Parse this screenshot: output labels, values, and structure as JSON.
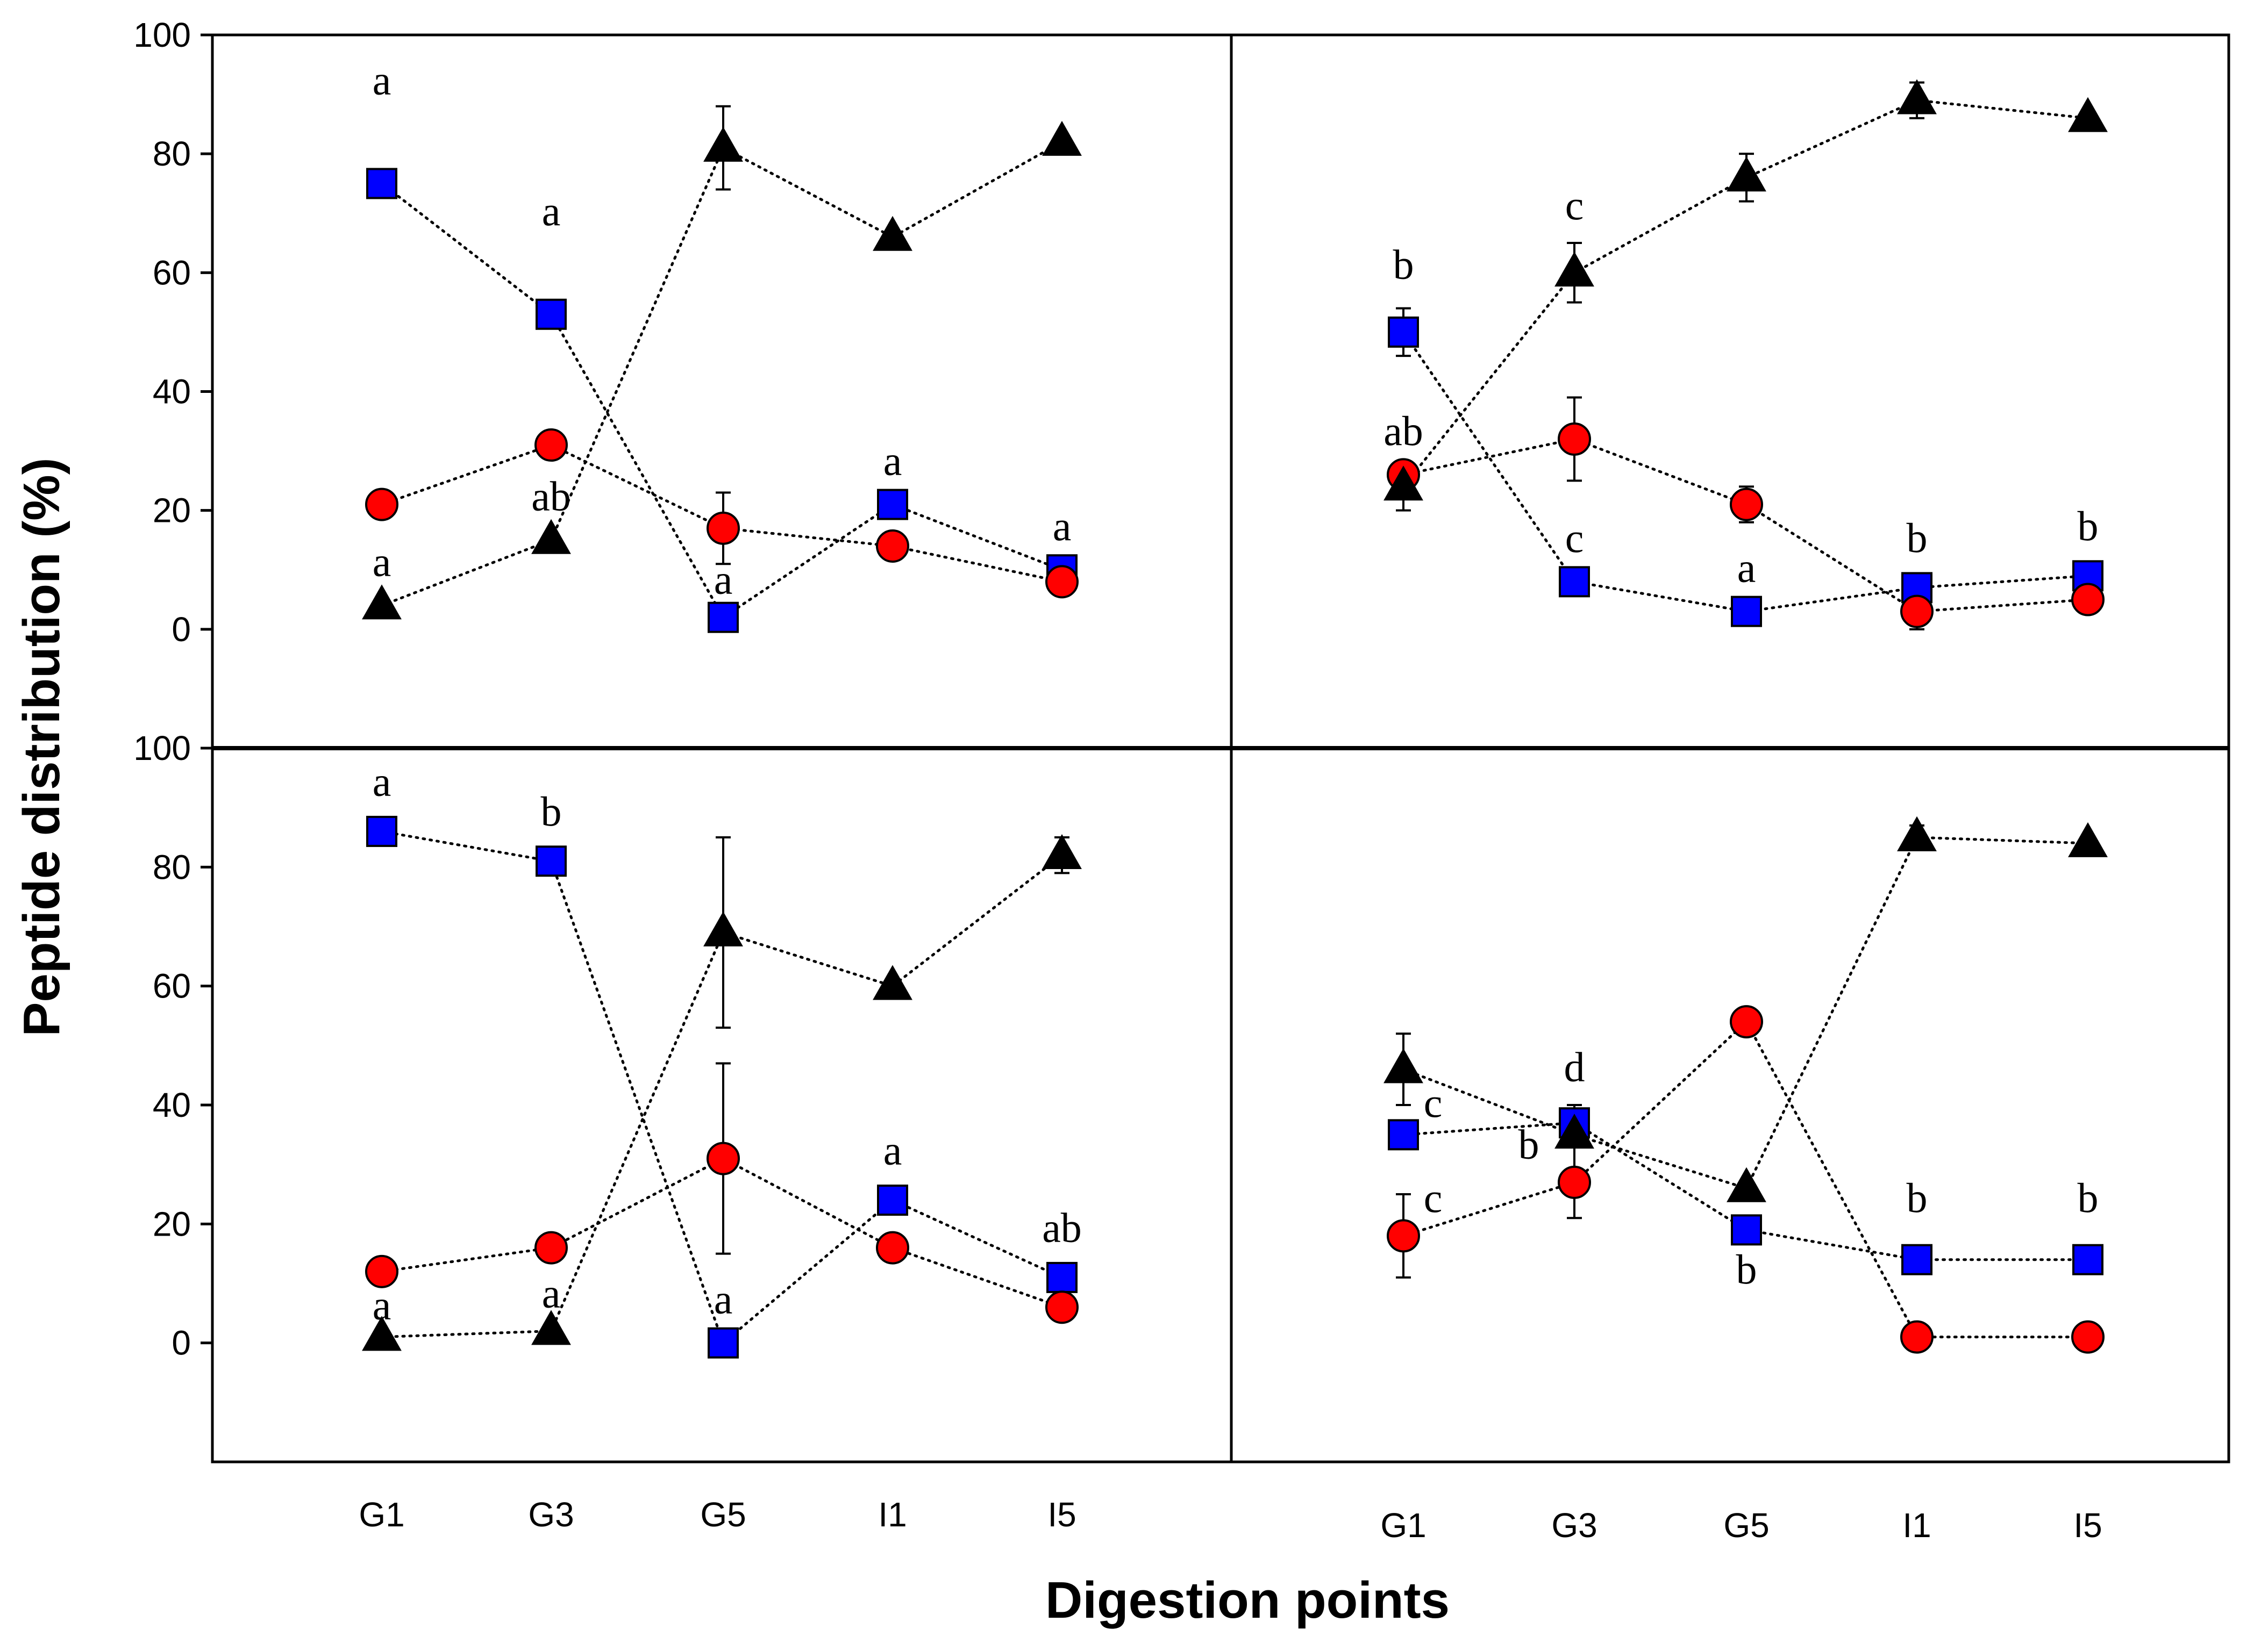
{
  "chart_data": [
    {
      "type": "line",
      "panel": "top-left",
      "categories": [
        "G1",
        "G3",
        "G5",
        "I1",
        "I5"
      ],
      "ylim": [
        -20,
        100
      ],
      "series": [
        {
          "name": "blue-square",
          "color": "#0000ff",
          "marker": "square",
          "values": [
            75,
            53,
            2,
            21,
            10
          ],
          "errors": [
            0,
            0,
            0,
            0,
            0
          ]
        },
        {
          "name": "red-circle",
          "color": "#ff0000",
          "marker": "circle",
          "values": [
            21,
            31,
            17,
            14,
            8
          ],
          "errors": [
            0,
            0,
            6,
            0,
            0
          ]
        },
        {
          "name": "black-triangle",
          "color": "#000000",
          "marker": "triangle",
          "values": [
            4,
            15,
            81,
            66,
            82
          ],
          "errors": [
            0,
            0,
            7,
            0,
            0
          ]
        }
      ],
      "annotations": [
        {
          "text": "a",
          "x": "G1",
          "y": 90
        },
        {
          "text": "a",
          "x": "G3",
          "y": 68
        },
        {
          "text": "a",
          "x": "G5",
          "y": 6
        },
        {
          "text": "a",
          "x": "I1",
          "y": 26
        },
        {
          "text": "a",
          "x": "I5",
          "y": 15
        },
        {
          "text": "ab",
          "x": "G3",
          "y": 20
        },
        {
          "text": "a",
          "x": "G1",
          "y": 9
        }
      ]
    },
    {
      "type": "line",
      "panel": "top-right",
      "categories": [
        "G1",
        "G3",
        "G5",
        "I1",
        "I5"
      ],
      "ylim": [
        -20,
        100
      ],
      "series": [
        {
          "name": "blue-square",
          "color": "#0000ff",
          "marker": "square",
          "values": [
            50,
            8,
            3,
            7,
            9
          ],
          "errors": [
            4,
            0,
            0,
            0,
            0
          ]
        },
        {
          "name": "red-circle",
          "color": "#ff0000",
          "marker": "circle",
          "values": [
            26,
            32,
            21,
            3,
            5
          ],
          "errors": [
            0,
            7,
            3,
            3,
            0
          ]
        },
        {
          "name": "black-triangle",
          "color": "#000000",
          "marker": "triangle",
          "values": [
            24,
            60,
            76,
            89,
            86
          ],
          "errors": [
            4,
            5,
            4,
            3,
            0
          ]
        }
      ],
      "annotations": [
        {
          "text": "b",
          "x": "G1",
          "y": 59
        },
        {
          "text": "c",
          "x": "G3",
          "y": 69
        },
        {
          "text": "ab",
          "x": "G1",
          "y": 31
        },
        {
          "text": "c",
          "x": "G3",
          "y": 13
        },
        {
          "text": "a",
          "x": "G5",
          "y": 8
        },
        {
          "text": "b",
          "x": "I1",
          "y": 13
        },
        {
          "text": "b",
          "x": "I5",
          "y": 15
        }
      ]
    },
    {
      "type": "line",
      "panel": "bottom-left",
      "categories": [
        "G1",
        "G3",
        "G5",
        "I1",
        "I5"
      ],
      "ylim": [
        -20,
        100
      ],
      "series": [
        {
          "name": "blue-square",
          "color": "#0000ff",
          "marker": "square",
          "values": [
            86,
            81,
            0,
            24,
            11
          ],
          "errors": [
            0,
            0,
            0,
            0,
            0
          ]
        },
        {
          "name": "red-circle",
          "color": "#ff0000",
          "marker": "circle",
          "values": [
            12,
            16,
            31,
            16,
            6
          ],
          "errors": [
            0,
            0,
            16,
            0,
            0
          ]
        },
        {
          "name": "black-triangle",
          "color": "#000000",
          "marker": "triangle",
          "values": [
            1,
            2,
            69,
            60,
            82
          ],
          "errors": [
            0,
            0,
            16,
            0,
            3
          ]
        }
      ],
      "annotations": [
        {
          "text": "a",
          "x": "G1",
          "y": 92
        },
        {
          "text": "b",
          "x": "G3",
          "y": 87
        },
        {
          "text": "a",
          "x": "G1",
          "y": 4
        },
        {
          "text": "a",
          "x": "G3",
          "y": 6
        },
        {
          "text": "a",
          "x": "G5",
          "y": 5
        },
        {
          "text": "a",
          "x": "I1",
          "y": 30
        },
        {
          "text": "ab",
          "x": "I5",
          "y": 17
        }
      ]
    },
    {
      "type": "line",
      "panel": "bottom-right",
      "categories": [
        "G1",
        "G3",
        "G5",
        "I1",
        "I5"
      ],
      "xlabels": [
        "G1",
        "G3",
        "G5",
        "I1",
        "I5"
      ],
      "ylim": [
        -20,
        100
      ],
      "series": [
        {
          "name": "blue-square",
          "color": "#0000ff",
          "marker": "square",
          "values": [
            35,
            37,
            19,
            14,
            14
          ],
          "errors": [
            0,
            3,
            0,
            0,
            0
          ]
        },
        {
          "name": "red-circle",
          "color": "#ff0000",
          "marker": "circle",
          "values": [
            18,
            27,
            54,
            1,
            1
          ],
          "errors": [
            7,
            6,
            0,
            0,
            0
          ]
        },
        {
          "name": "black-triangle",
          "color": "#000000",
          "marker": "triangle",
          "values": [
            46,
            35,
            26,
            85,
            84
          ],
          "errors": [
            6,
            0,
            0,
            2,
            0
          ]
        }
      ],
      "annotations": [
        {
          "text": "c",
          "x": "G1",
          "y": 38,
          "offset": "right"
        },
        {
          "text": "c",
          "x": "G1",
          "y": 22,
          "offset": "right"
        },
        {
          "text": "d",
          "x": "G3",
          "y": 44
        },
        {
          "text": "b",
          "x": "G3",
          "y": 31,
          "offset": "left"
        },
        {
          "text": "b",
          "x": "G5",
          "y": 10
        },
        {
          "text": "b",
          "x": "I1",
          "y": 22
        },
        {
          "text": "b",
          "x": "I5",
          "y": 22
        }
      ]
    }
  ],
  "axes": {
    "ylabel": "Peptide distribution (%)",
    "xlabel": "Digestion points",
    "yticks": [
      0,
      20,
      40,
      60,
      80,
      100
    ]
  }
}
